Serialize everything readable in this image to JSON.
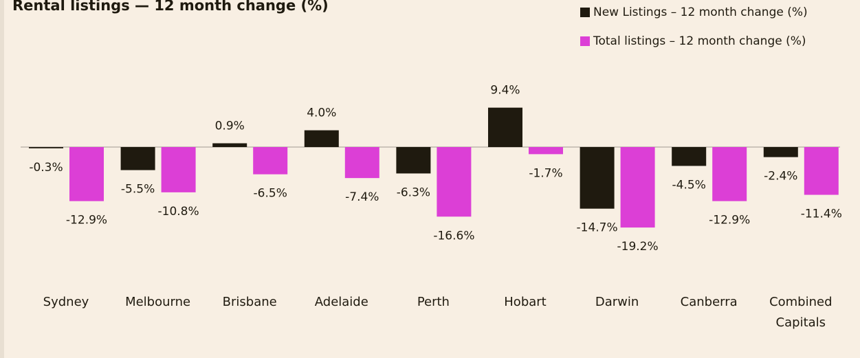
{
  "chart_data": {
    "type": "bar",
    "title": "Rental listings — 12 month change (%)",
    "categories": [
      "Sydney",
      "Melbourne",
      "Brisbane",
      "Adelaide",
      "Perth",
      "Hobart",
      "Darwin",
      "Canberra",
      "Combined Capitals"
    ],
    "series": [
      {
        "name": "New Listings – 12 month change (%)",
        "color": "#1f1a0f",
        "values": [
          -0.3,
          -5.5,
          0.9,
          4.0,
          -6.3,
          9.4,
          -14.7,
          -4.5,
          -2.4
        ],
        "value_labels": [
          "-0.3%",
          "-5.5%",
          "0.9%",
          "4.0%",
          "-6.3%",
          "9.4%",
          "-14.7%",
          "-4.5%",
          "-2.4%"
        ]
      },
      {
        "name": "Total listings – 12 month change (%)",
        "color": "#dc3fd6",
        "values": [
          -12.9,
          -10.8,
          -6.5,
          -7.4,
          -16.6,
          -1.7,
          -19.2,
          -12.9,
          -11.4
        ],
        "value_labels": [
          "-12.9%",
          "-10.8%",
          "-6.5%",
          "-7.4%",
          "-16.6%",
          "-1.7%",
          "-19.2%",
          "-12.9%",
          "-11.4%"
        ]
      }
    ],
    "legend": "top-right"
  }
}
